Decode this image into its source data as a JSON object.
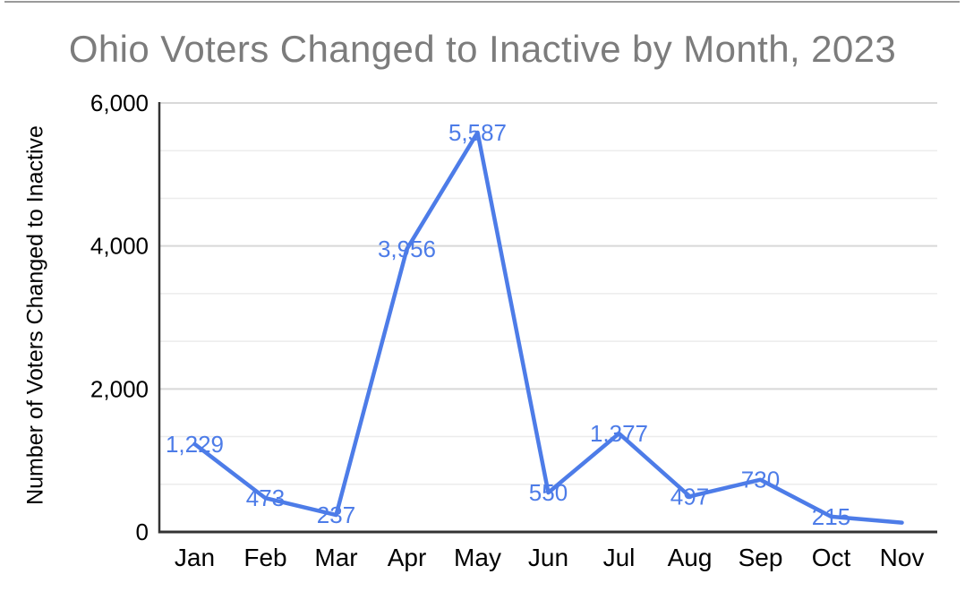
{
  "page": {
    "top_border_color": "#9a9a9a",
    "background_color": "#ffffff"
  },
  "chart_data": {
    "type": "line",
    "title": "Ohio Voters Changed to Inactive by Month, 2023",
    "xlabel": "",
    "ylabel": "Number of Voters Changed to Inactive",
    "categories": [
      "Jan",
      "Feb",
      "Mar",
      "Apr",
      "May",
      "Jun",
      "Jul",
      "Aug",
      "Sep",
      "Oct",
      "Nov"
    ],
    "values": [
      1229,
      473,
      237,
      3956,
      5587,
      550,
      1377,
      497,
      730,
      215,
      130
    ],
    "data_labels": [
      "1,229",
      "473",
      "237",
      "3,956",
      "5,587",
      "550",
      "1,377",
      "497",
      "730",
      "215",
      ""
    ],
    "ylim": [
      0,
      6000
    ],
    "y_major_step": 2000,
    "y_minor_divisions": 3,
    "y_tick_labels": [
      "0",
      "2,000",
      "4,000",
      "6,000"
    ],
    "grid": true,
    "legend_position": "none",
    "series_color": "#4d7ce8",
    "title_color": "#7c7c7c",
    "axis_color": "#333333",
    "major_grid_color": "#d8d8d8",
    "minor_grid_color": "#ececec",
    "tick_label_color": "#000000"
  }
}
